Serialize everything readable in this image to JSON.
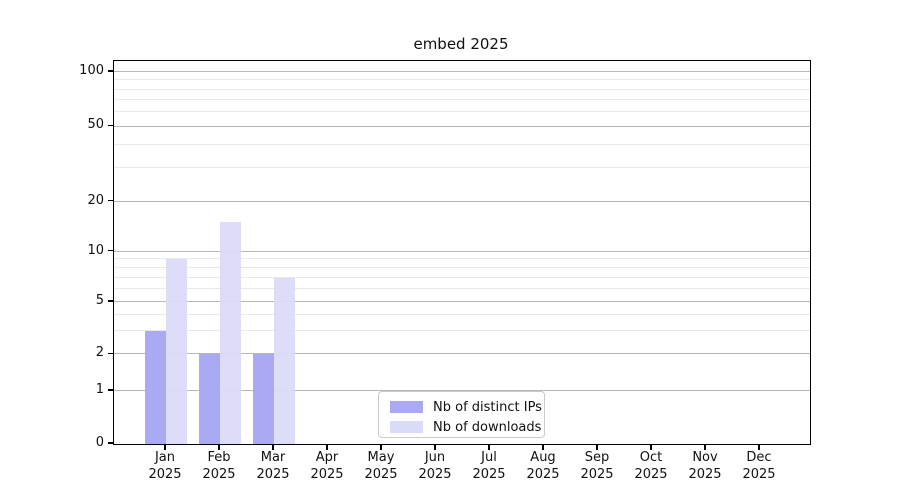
{
  "title": "embed 2025",
  "colors": {
    "distinct_ips_bar": "#a9aaf3",
    "downloads_bar": "#dadaf9",
    "major_gridline": "#b7b7b7",
    "minor_gridline": "#e9e9e9",
    "axis_spine": "#000000",
    "text": "#111111"
  },
  "legend": {
    "items": [
      {
        "label": "Nb of distinct IPs",
        "color": "#a9aaf3"
      },
      {
        "label": "Nb of downloads",
        "color": "#dadaf9"
      }
    ]
  },
  "chart_data": {
    "type": "bar",
    "title": "embed 2025",
    "xlabel": "",
    "ylabel": "",
    "grid": "on",
    "legend_position": "lower center",
    "yaxis": {
      "scale": "quasi-log (symlog-like, linear 0-1)",
      "major_ticks": [
        0,
        1,
        2,
        5,
        10,
        20,
        50,
        100
      ],
      "minor_ticks": [
        3,
        4,
        6,
        7,
        8,
        9,
        30,
        40,
        60,
        70,
        80,
        90
      ],
      "range": [
        0,
        110
      ]
    },
    "categories": [
      {
        "month": "Jan",
        "year": "2025"
      },
      {
        "month": "Feb",
        "year": "2025"
      },
      {
        "month": "Mar",
        "year": "2025"
      },
      {
        "month": "Apr",
        "year": "2025"
      },
      {
        "month": "May",
        "year": "2025"
      },
      {
        "month": "Jun",
        "year": "2025"
      },
      {
        "month": "Jul",
        "year": "2025"
      },
      {
        "month": "Aug",
        "year": "2025"
      },
      {
        "month": "Sep",
        "year": "2025"
      },
      {
        "month": "Oct",
        "year": "2025"
      },
      {
        "month": "Nov",
        "year": "2025"
      },
      {
        "month": "Dec",
        "year": "2025"
      }
    ],
    "series": [
      {
        "name": "Nb of distinct IPs",
        "color": "#a9aaf3",
        "values": [
          3,
          2,
          2,
          0,
          0,
          0,
          0,
          0,
          0,
          0,
          0,
          0
        ]
      },
      {
        "name": "Nb of downloads",
        "color": "#dadaf9",
        "values": [
          9,
          15,
          7,
          0,
          0,
          0,
          0,
          0,
          0,
          0,
          0,
          0
        ]
      }
    ]
  }
}
